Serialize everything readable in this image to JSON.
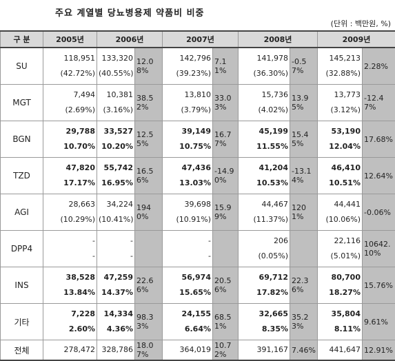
{
  "header": {
    "title": "주요 계열별 당뇨병용제 약품비 비중",
    "unit": "(단위 : 백만원, %)"
  },
  "table": {
    "corner": "구 분",
    "years": [
      "2005년",
      "2006년",
      "2007년",
      "2008년",
      "2009년"
    ],
    "rows": [
      {
        "label": "SU",
        "cells": [
          {
            "amount": "118,951",
            "share": "(42.72%)"
          },
          {
            "amount": "133,320",
            "share": "(40.55%)",
            "growth": "12.08%"
          },
          {
            "amount": "142,796",
            "share": "(39.23%)",
            "growth": "7.11%"
          },
          {
            "amount": "141,978",
            "share": "(36.30%)",
            "growth": "-0.57%"
          },
          {
            "amount": "145,213",
            "share": "(32.88%)",
            "growth": "2.28%"
          }
        ]
      },
      {
        "label": "MGT",
        "cells": [
          {
            "amount": "7,494",
            "share": "(2.69%)"
          },
          {
            "amount": "10,381",
            "share": "(3.16%)",
            "growth": "38.52%"
          },
          {
            "amount": "13,810",
            "share": "(3.79%)",
            "growth": "33.03%"
          },
          {
            "amount": "15,736",
            "share": "(4.02%)",
            "growth": "13.95%"
          },
          {
            "amount": "13,773",
            "share": "(3.12%)",
            "growth": "-12.47%"
          }
        ]
      },
      {
        "label": "BGN",
        "cells": [
          {
            "amount": "29,788",
            "share": "10.70%"
          },
          {
            "amount": "33,527",
            "share": "10.20%",
            "growth": "12.55%"
          },
          {
            "amount": "39,149",
            "share": "10.75%",
            "growth": "16.77%"
          },
          {
            "amount": "45,199",
            "share": "11.55%",
            "growth": "15.45%"
          },
          {
            "amount": "53,190",
            "share": "12.04%",
            "growth": "17.68%"
          }
        ]
      },
      {
        "label": "TZD",
        "cells": [
          {
            "amount": "47,820",
            "share": "17.17%"
          },
          {
            "amount": "55,742",
            "share": "16.95%",
            "growth": "16.56%"
          },
          {
            "amount": "47,436",
            "share": "13.03%",
            "growth": "-14.90%"
          },
          {
            "amount": "41,204",
            "share": "10.53%",
            "growth": "-13.14%"
          },
          {
            "amount": "46,410",
            "share": "10.51%",
            "growth": "12.64%"
          }
        ]
      },
      {
        "label": "AGI",
        "cells": [
          {
            "amount": "28,663",
            "share": "(10.29%)"
          },
          {
            "amount": "34,224",
            "share": "(10.41%)",
            "growth": "1940%"
          },
          {
            "amount": "39,698",
            "share": "(10.91%)",
            "growth": "15.99%"
          },
          {
            "amount": "44,467",
            "share": "(11.37%)",
            "growth": "1201%"
          },
          {
            "amount": "44,441",
            "share": "(10.06%)",
            "growth": "-0.06%"
          }
        ]
      },
      {
        "label": "DPP4",
        "cells": [
          {
            "amount": "-",
            "share": "-"
          },
          {
            "amount": "-",
            "share": "-"
          },
          {
            "amount": "-",
            "share": "-"
          },
          {
            "amount": "206",
            "share": "(0.05%)"
          },
          {
            "amount": "22,116",
            "share": "(5.01%)",
            "growth": "10642.10%"
          }
        ]
      },
      {
        "label": "INS",
        "cells": [
          {
            "amount": "38,528",
            "share": "13.84%"
          },
          {
            "amount": "47,259",
            "share": "14.37%",
            "growth": "22.66%"
          },
          {
            "amount": "56,974",
            "share": "15.65%",
            "growth": "20.56%"
          },
          {
            "amount": "69,712",
            "share": "17.82%",
            "growth": "22.36%"
          },
          {
            "amount": "80,700",
            "share": "18.27%",
            "growth": "15.76%"
          }
        ]
      },
      {
        "label": "기타",
        "cells": [
          {
            "amount": "7,228",
            "share": "2.60%"
          },
          {
            "amount": "14,334",
            "share": "4.36%",
            "growth": "98.33%"
          },
          {
            "amount": "24,155",
            "share": "6.64%",
            "growth": "68.51%"
          },
          {
            "amount": "32,665",
            "share": "8.35%",
            "growth": "35.23%"
          },
          {
            "amount": "35,804",
            "share": "8.11%",
            "growth": "9.61%"
          }
        ]
      },
      {
        "label": "전체",
        "cells": [
          {
            "amount": "278,472"
          },
          {
            "amount": "328,786",
            "growth": "18.07%"
          },
          {
            "amount": "364,019",
            "growth": "10.72%"
          },
          {
            "amount": "391,167",
            "growth": "7.46%"
          },
          {
            "amount": "441,647",
            "growth": "12.91%"
          }
        ]
      }
    ]
  }
}
